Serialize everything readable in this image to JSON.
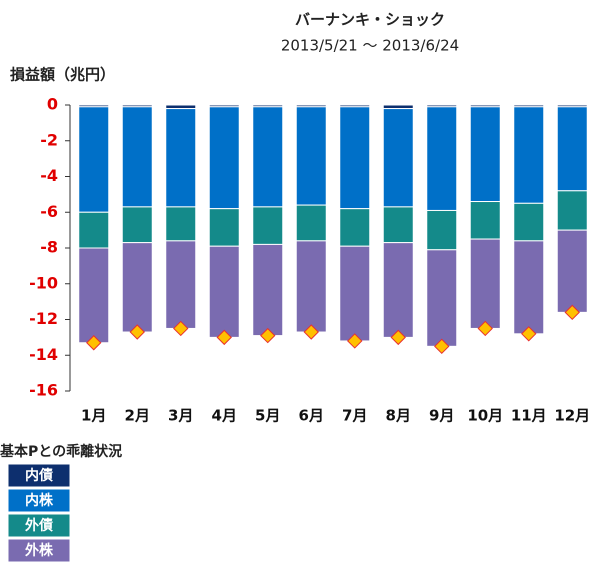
{
  "chart_data": {
    "type": "stacked_bar",
    "title": "バーナンキ・ショック",
    "subtitle": "2013/5/21 ～ 2013/6/24",
    "y_label": "損益額（兆円）",
    "note": "基本Pとの乖離状況",
    "categories": [
      "1月",
      "2月",
      "3月",
      "4月",
      "5月",
      "6月",
      "7月",
      "8月",
      "9月",
      "10月",
      "11月",
      "12月"
    ],
    "series": [
      {
        "name": "内債",
        "color": "#0d2f6e",
        "values": [
          -0.1,
          -0.1,
          -0.2,
          -0.1,
          -0.1,
          -0.1,
          -0.1,
          -0.2,
          -0.1,
          -0.1,
          -0.1,
          -0.1
        ]
      },
      {
        "name": "内株",
        "color": "#0070c8",
        "values": [
          -5.9,
          -5.6,
          -5.5,
          -5.7,
          -5.6,
          -5.5,
          -5.7,
          -5.5,
          -5.8,
          -5.3,
          -5.4,
          -4.7
        ]
      },
      {
        "name": "外債",
        "color": "#148a8a",
        "values": [
          -2.0,
          -2.0,
          -1.9,
          -2.1,
          -2.1,
          -2.0,
          -2.1,
          -2.0,
          -2.2,
          -2.1,
          -2.1,
          -2.2
        ]
      },
      {
        "name": "外株",
        "color": "#7a6bb0",
        "values": [
          -5.3,
          -5.0,
          -4.9,
          -5.1,
          -5.1,
          -5.1,
          -5.3,
          -5.3,
          -5.4,
          -5.0,
          -5.2,
          -4.6
        ]
      }
    ],
    "total_markers": {
      "color": "#ffc000",
      "values": [
        -13.3,
        -12.7,
        -12.5,
        -13.0,
        -12.9,
        -12.7,
        -13.2,
        -13.0,
        -13.5,
        -12.5,
        -12.8,
        -11.6
      ]
    },
    "ylim": [
      -16,
      0
    ],
    "yticks": [
      0,
      -2,
      -4,
      -6,
      -8,
      -10,
      -12,
      -14,
      -16
    ]
  }
}
